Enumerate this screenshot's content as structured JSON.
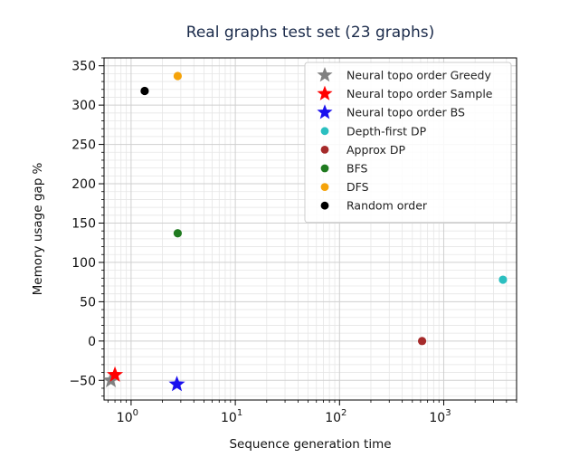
{
  "chart_data": {
    "type": "scatter",
    "title": "Real graphs test set (23 graphs)",
    "xlabel": "Sequence generation time",
    "ylabel": "Memory usage gap %",
    "xscale": "log",
    "xlim": [
      0.55,
      5000
    ],
    "ylim": [
      -75,
      360
    ],
    "yticks": [
      -50,
      0,
      50,
      100,
      150,
      200,
      250,
      300,
      350
    ],
    "ytick_labels": [
      "−50",
      "0",
      "50",
      "100",
      "150",
      "200",
      "250",
      "300",
      "350"
    ],
    "xticks": [
      1,
      10,
      100,
      1000
    ],
    "xtick_labels": [
      {
        "base": "10",
        "exp": "0"
      },
      {
        "base": "10",
        "exp": "1"
      },
      {
        "base": "10",
        "exp": "2"
      },
      {
        "base": "10",
        "exp": "3"
      }
    ],
    "grid": true,
    "legend_position": "top-right",
    "series": [
      {
        "name": "Neural topo order Greedy",
        "marker": "star",
        "color": "#808080",
        "points": [
          {
            "x": 0.64,
            "y": -50
          }
        ]
      },
      {
        "name": "Neural topo order Sample",
        "marker": "star",
        "color": "#ff0000",
        "points": [
          {
            "x": 0.7,
            "y": -43
          }
        ]
      },
      {
        "name": "Neural topo order BS",
        "marker": "star",
        "color": "#1a10ee",
        "points": [
          {
            "x": 2.75,
            "y": -55
          }
        ]
      },
      {
        "name": "Depth-first DP",
        "marker": "circle",
        "color": "#2bbfc0",
        "points": [
          {
            "x": 3700,
            "y": 78
          }
        ]
      },
      {
        "name": "Approx DP",
        "marker": "circle",
        "color": "#a52a2a",
        "points": [
          {
            "x": 620,
            "y": 0
          }
        ]
      },
      {
        "name": "BFS",
        "marker": "circle",
        "color": "#1f7a1f",
        "points": [
          {
            "x": 2.8,
            "y": 137
          }
        ]
      },
      {
        "name": "DFS",
        "marker": "circle",
        "color": "#f5a30a",
        "points": [
          {
            "x": 2.8,
            "y": 337
          }
        ]
      },
      {
        "name": "Random order",
        "marker": "circle",
        "color": "#000000",
        "points": [
          {
            "x": 1.35,
            "y": 318
          }
        ]
      }
    ]
  }
}
